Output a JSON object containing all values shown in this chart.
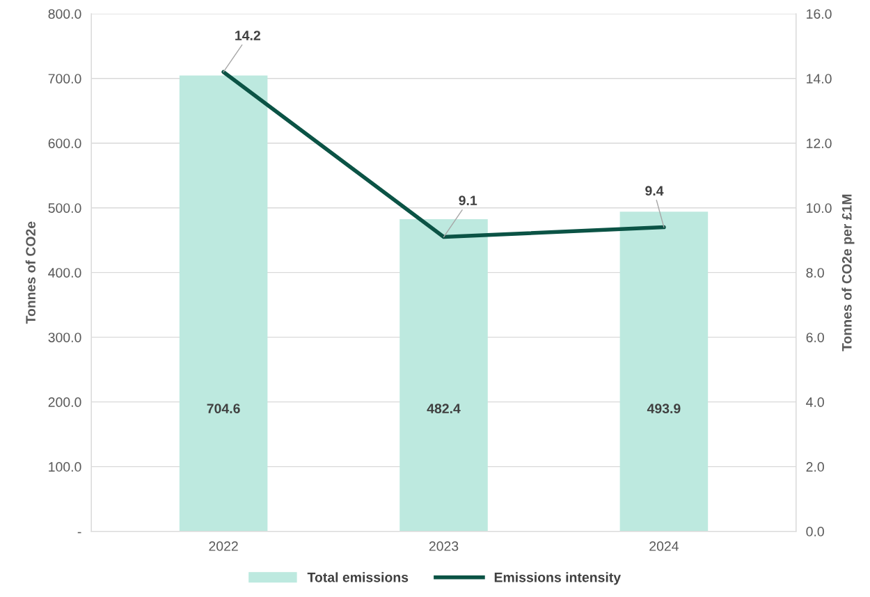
{
  "chart_data": {
    "type": "bar",
    "categories": [
      "2022",
      "2023",
      "2024"
    ],
    "series": [
      {
        "name": "Total emissions",
        "color": "#bde9df",
        "values": [
          704.6,
          482.4,
          493.9
        ]
      },
      {
        "name": "Emissions intensity",
        "type": "line",
        "axis": "y2",
        "color": "#0b5345",
        "values": [
          14.2,
          9.1,
          9.4
        ]
      }
    ],
    "ylabel": "Tonnes of CO2e",
    "y2label": "Tonnes of CO2e per £1M",
    "ylim": [
      0,
      800
    ],
    "yticks": [
      {
        "value": 0,
        "label": "-"
      },
      {
        "value": 100,
        "label": "100.0"
      },
      {
        "value": 200,
        "label": "200.0"
      },
      {
        "value": 300,
        "label": "300.0"
      },
      {
        "value": 400,
        "label": "400.0"
      },
      {
        "value": 500,
        "label": "500.0"
      },
      {
        "value": 600,
        "label": "600.0"
      },
      {
        "value": 700,
        "label": "700.0"
      },
      {
        "value": 800,
        "label": "800.0"
      }
    ],
    "y2lim": [
      0,
      16
    ],
    "y2ticks": [
      {
        "value": 0,
        "label": "0.0"
      },
      {
        "value": 2,
        "label": "2.0"
      },
      {
        "value": 4,
        "label": "4.0"
      },
      {
        "value": 6,
        "label": "6.0"
      },
      {
        "value": 8,
        "label": "8.0"
      },
      {
        "value": 10,
        "label": "10.0"
      },
      {
        "value": 12,
        "label": "12.0"
      },
      {
        "value": 14,
        "label": "14.0"
      },
      {
        "value": 16,
        "label": "16.0"
      }
    ],
    "data_labels": true,
    "grid": "y",
    "legend": "bottom",
    "marker": "none",
    "line_style": "solid"
  }
}
